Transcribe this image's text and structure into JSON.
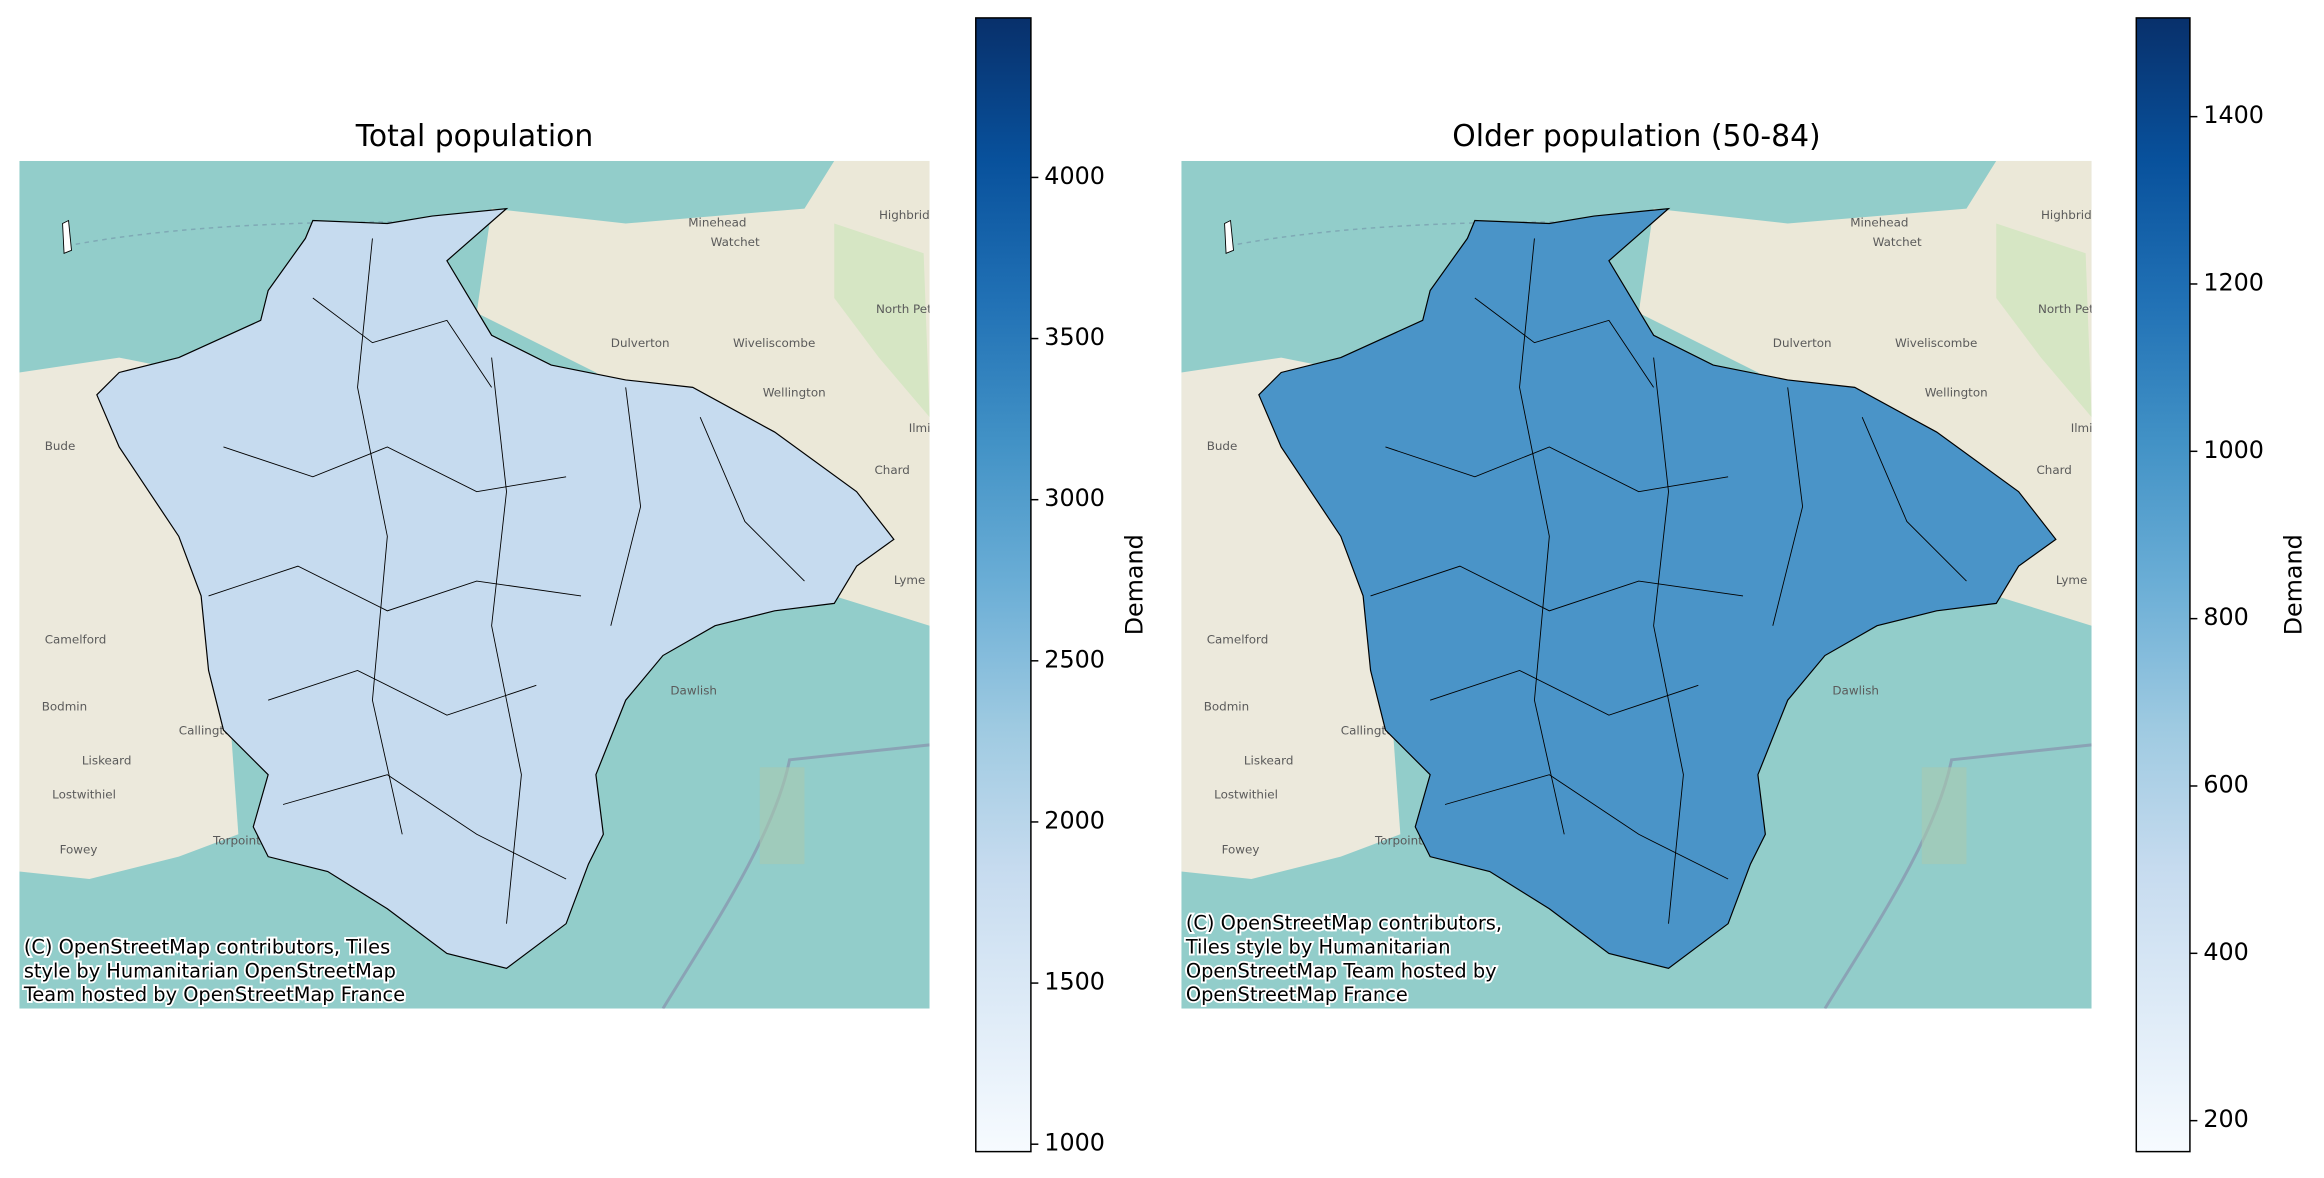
{
  "maps": [
    {
      "title": "Total population",
      "colorbar": {
        "label": "Demand",
        "lim": [
          977,
          4495
        ],
        "ticks": [
          1000,
          1500,
          2000,
          2500,
          3000,
          3500,
          4000
        ]
      },
      "region_color": "#c6dbef",
      "attribution": [
        "(C) OpenStreetMap contributors, Tiles",
        "style by Humanitarian OpenStreetMap",
        "Team hosted by OpenStreetMap France"
      ]
    },
    {
      "title": "Older population (50-84)",
      "colorbar": {
        "label": "Demand",
        "lim": [
          163,
          1518
        ],
        "ticks": [
          200,
          400,
          600,
          800,
          1000,
          1200,
          1400
        ]
      },
      "region_color": "#4a94c8",
      "attribution": [
        "(C) OpenStreetMap contributors,",
        "Tiles style by Humanitarian",
        "OpenStreetMap Team hosted by",
        "OpenStreetMap France"
      ]
    }
  ],
  "colormap_colors": [
    "#f7fbff",
    "#deebf7",
    "#c6dbef",
    "#9ecae1",
    "#6baed6",
    "#4292c6",
    "#2171b5",
    "#08519c",
    "#08306b"
  ],
  "place_labels": [
    "Minehead",
    "Watchet",
    "Highbridge",
    "North Petherton",
    "Dulverton",
    "Wiveliscombe",
    "Wellington",
    "Ilminster",
    "Chard",
    "Bude",
    "Camelford",
    "Bodmin",
    "Callington",
    "Liskeard",
    "Lostwithiel",
    "Fowey",
    "Torpoint",
    "Lyme Regis",
    "Dawlish"
  ]
}
